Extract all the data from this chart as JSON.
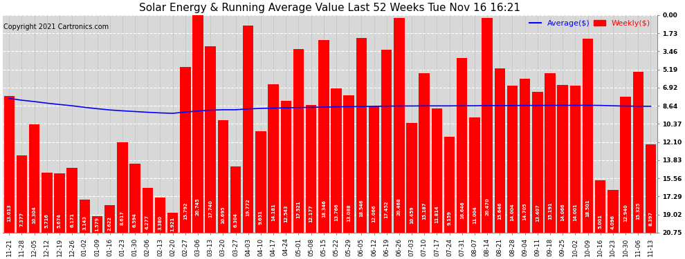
{
  "title": "Solar Energy & Running Average Value Last 52 Weeks Tue Nov 16 16:21",
  "copyright": "Copyright 2021 Cartronics.com",
  "bar_color": "#ff0000",
  "avg_line_color": "#0000ff",
  "background_color": "#ffffff",
  "plot_bg_color": "#d8d8d8",
  "grid_color": "#ffffff",
  "grid_color_v": "#bbbbbb",
  "ylabel_right": [
    "20.75",
    "19.02",
    "17.29",
    "15.56",
    "13.83",
    "12.10",
    "10.37",
    "8.64",
    "6.92",
    "5.19",
    "3.46",
    "1.73",
    "0.00"
  ],
  "yticks": [
    0.0,
    1.73,
    3.46,
    5.19,
    6.92,
    8.64,
    10.37,
    12.1,
    13.83,
    15.56,
    17.29,
    19.02,
    20.75
  ],
  "xlabels": [
    "11-21",
    "11-28",
    "12-05",
    "12-12",
    "12-19",
    "12-26",
    "01-02",
    "01-09",
    "01-16",
    "01-23",
    "01-30",
    "02-06",
    "02-13",
    "02-20",
    "02-27",
    "03-06",
    "03-13",
    "03-20",
    "03-27",
    "04-03",
    "04-10",
    "04-17",
    "04-24",
    "05-01",
    "05-08",
    "05-15",
    "05-22",
    "05-29",
    "06-05",
    "06-12",
    "06-19",
    "06-26",
    "07-03",
    "07-10",
    "07-17",
    "07-24",
    "07-31",
    "08-07",
    "08-14",
    "08-21",
    "08-28",
    "09-04",
    "09-11",
    "09-18",
    "09-25",
    "10-02",
    "10-09",
    "10-16",
    "10-23",
    "10-30",
    "11-06",
    "11-13"
  ],
  "weekly_values": [
    13.013,
    7.377,
    10.304,
    5.716,
    5.674,
    6.171,
    3.143,
    1.579,
    2.622,
    8.617,
    6.594,
    4.277,
    3.38,
    1.921,
    15.792,
    20.745,
    17.74,
    10.695,
    6.304,
    19.772,
    9.651,
    14.181,
    12.543,
    17.521,
    12.177,
    18.346,
    13.766,
    13.088,
    18.546,
    12.066,
    17.452,
    20.468,
    10.459,
    15.187,
    11.814,
    9.159,
    16.646,
    11.004,
    20.47,
    15.646,
    14.004,
    14.705,
    13.407,
    15.191,
    14.066,
    14.001,
    18.501,
    5.001,
    4.096,
    12.94,
    15.325,
    8.397
  ],
  "avg_values": [
    12.8,
    12.63,
    12.5,
    12.35,
    12.22,
    12.1,
    11.95,
    11.82,
    11.7,
    11.62,
    11.55,
    11.48,
    11.42,
    11.38,
    11.5,
    11.6,
    11.68,
    11.72,
    11.72,
    11.8,
    11.85,
    11.88,
    11.9,
    11.93,
    11.95,
    11.98,
    12.0,
    12.02,
    12.03,
    12.05,
    12.06,
    12.08,
    12.08,
    12.09,
    12.09,
    12.09,
    12.1,
    12.1,
    12.12,
    12.12,
    12.12,
    12.13,
    12.13,
    12.14,
    12.14,
    12.14,
    12.15,
    12.13,
    12.1,
    12.07,
    12.06,
    12.05
  ],
  "legend_avg_label": "Average($)",
  "legend_weekly_label": "Weekly($)",
  "legend_avg_color": "#0000ff",
  "legend_weekly_color": "#ff0000",
  "ylim": [
    0,
    20.75
  ],
  "figsize": [
    9.9,
    3.75
  ],
  "dpi": 100,
  "title_fontsize": 11,
  "copyright_fontsize": 7,
  "tick_fontsize": 6.5,
  "value_fontsize": 4.8,
  "legend_fontsize": 8
}
